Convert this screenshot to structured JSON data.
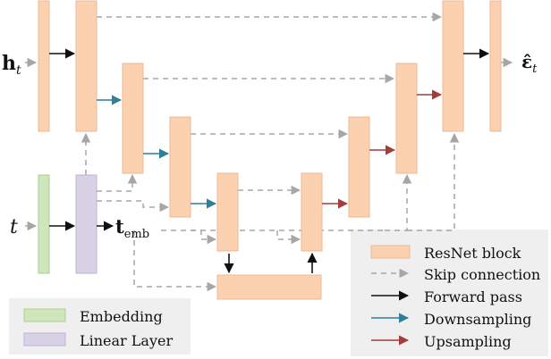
{
  "colors": {
    "resnet": "#fbd1b0",
    "resnet_stroke": "#eeb994",
    "embedding": "#cfe6bd",
    "embedding_stroke": "#a9d08f",
    "linear": "#d9d2e6",
    "linear_stroke": "#beb3d6",
    "skip": "#a6a6a6",
    "forward": "#111111",
    "downsampling": "#2e7f97",
    "upsampling": "#a43c3a",
    "legend_bg": "#efefef"
  },
  "inputs": {
    "h_symbol": "h",
    "h_subscript": "t",
    "t_symbol": "t",
    "temb_symbol": "t",
    "temb_subscript": "emb"
  },
  "output": {
    "eps_symbol": "ε̂",
    "eps_subscript": "t"
  },
  "legend_right": [
    {
      "label": "ResNet block",
      "kind": "resnet"
    },
    {
      "label": "Skip connection",
      "kind": "skip"
    },
    {
      "label": "Forward pass",
      "kind": "forward"
    },
    {
      "label": "Downsampling",
      "kind": "down"
    },
    {
      "label": "Upsampling",
      "kind": "up"
    }
  ],
  "legend_left": [
    {
      "label": "Embedding",
      "kind": "embedding"
    },
    {
      "label": "Linear Layer",
      "kind": "linear"
    }
  ]
}
